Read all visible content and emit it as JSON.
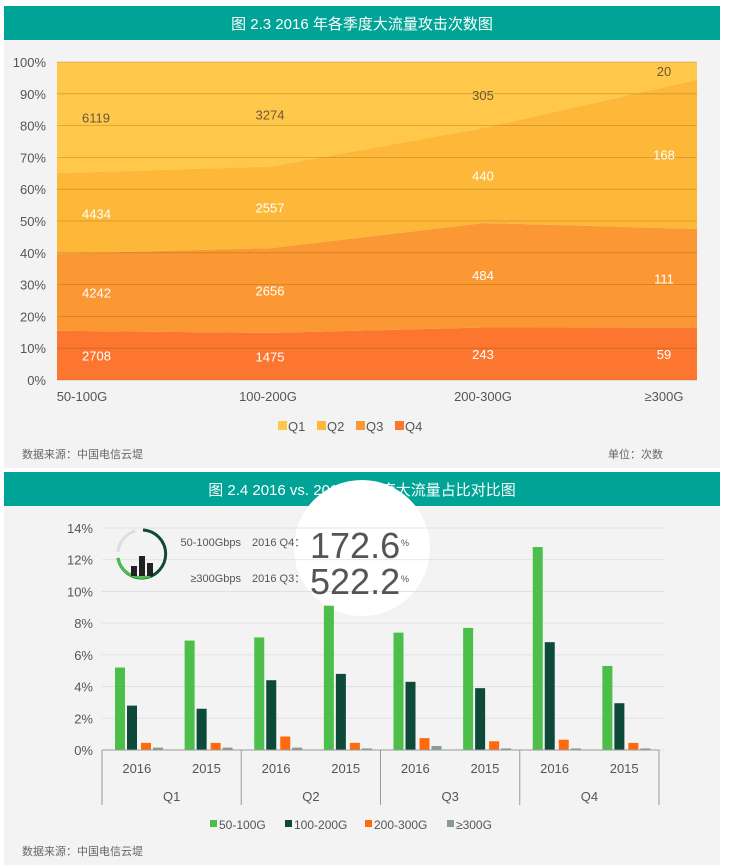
{
  "chart_data": [
    {
      "type": "area",
      "title": "图 2.3 2016 年各季度大流量攻击次数图",
      "stacking": "percent",
      "categories": [
        "50-100G",
        "100-200G",
        "200-300G",
        "≥300G"
      ],
      "yticks": [
        "0%",
        "10%",
        "20%",
        "30%",
        "40%",
        "50%",
        "60%",
        "70%",
        "80%",
        "90%",
        "100%"
      ],
      "ylim": [
        0,
        100
      ],
      "series": [
        {
          "name": "Q1",
          "values": [
            6119,
            3274,
            305,
            20
          ],
          "color": "#ffc84a"
        },
        {
          "name": "Q2",
          "values": [
            4434,
            2557,
            440,
            168
          ],
          "color": "#fdb83a"
        },
        {
          "name": "Q3",
          "values": [
            4242,
            2656,
            484,
            111
          ],
          "color": "#fc9834"
        },
        {
          "name": "Q4",
          "values": [
            2708,
            1475,
            243,
            59
          ],
          "color": "#fd7630"
        }
      ],
      "legend": "bottom",
      "source": "数据来源：中国电信云堤",
      "unit": "单位：次数"
    },
    {
      "type": "bar",
      "title": "图 2.4 2016 vs. 2015 各季度大流量占比对比图",
      "groups": [
        "Q1",
        "Q2",
        "Q3",
        "Q4"
      ],
      "years": [
        "2016",
        "2015"
      ],
      "yticks": [
        "0%",
        "2%",
        "4%",
        "6%",
        "8%",
        "10%",
        "12%",
        "14%"
      ],
      "ylim": [
        0,
        14
      ],
      "series": [
        {
          "name": "50-100G",
          "color": "#4cbf4a",
          "values": [
            5.2,
            6.9,
            7.1,
            9.1,
            7.4,
            7.7,
            12.8,
            5.3
          ]
        },
        {
          "name": "100-200G",
          "color": "#0e4a3a",
          "values": [
            2.8,
            2.6,
            4.4,
            4.8,
            4.3,
            3.9,
            6.8,
            2.95
          ]
        },
        {
          "name": "200-300G",
          "color": "#ff6a0d",
          "values": [
            0.45,
            0.45,
            0.85,
            0.45,
            0.75,
            0.55,
            0.65,
            0.45
          ]
        },
        {
          "name": "≥300G",
          "color": "#8a9a92",
          "values": [
            0.15,
            0.15,
            0.15,
            0.1,
            0.25,
            0.1,
            0.1,
            0.1
          ]
        }
      ],
      "legend": "bottom",
      "callouts": [
        {
          "label": "50-100Gbps",
          "period": "2016 Q4：",
          "value": "172.6",
          "unit": "%"
        },
        {
          "label": "≥300Gbps",
          "period": "2016 Q3：",
          "value": "522.2",
          "unit": "%"
        }
      ],
      "source": "数据来源：中国电信云堤"
    }
  ]
}
